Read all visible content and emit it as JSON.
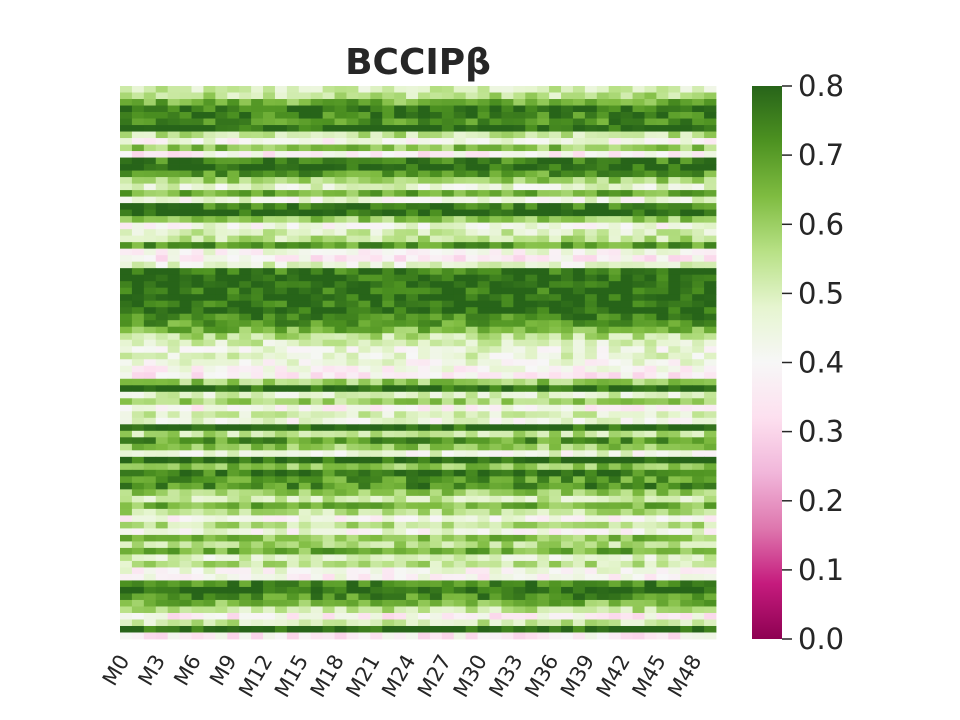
{
  "chart_data": {
    "type": "heatmap",
    "title": "BCCIPβ",
    "xlabel": "",
    "ylabel": "",
    "x_tick_labels": [
      "M0",
      "M3",
      "M6",
      "M9",
      "M12",
      "M15",
      "M18",
      "M21",
      "M24",
      "M27",
      "M30",
      "M33",
      "M36",
      "M39",
      "M42",
      "M45",
      "M48"
    ],
    "x_tick_step": 3,
    "n_columns": 50,
    "y_tick_labels": [],
    "colormap": "PiYG",
    "colormap_stops": [
      "#8e0152",
      "#c51b7d",
      "#de77ae",
      "#f1b6da",
      "#fde0ef",
      "#f7f7f7",
      "#e6f5d0",
      "#b8e186",
      "#7fbc41",
      "#4d9221",
      "#276419"
    ],
    "vmin": 0.0,
    "vmax": 0.8,
    "colorbar_ticks": [
      "0.0",
      "0.1",
      "0.2",
      "0.3",
      "0.4",
      "0.5",
      "0.6",
      "0.7",
      "0.8"
    ],
    "row_means": [
      0.5,
      0.55,
      0.66,
      0.77,
      0.74,
      0.72,
      0.8,
      0.55,
      0.42,
      0.62,
      0.38,
      0.75,
      0.79,
      0.7,
      0.6,
      0.48,
      0.66,
      0.45,
      0.75,
      0.8,
      0.61,
      0.43,
      0.5,
      0.55,
      0.7,
      0.42,
      0.36,
      0.47,
      0.76,
      0.79,
      0.8,
      0.78,
      0.8,
      0.78,
      0.8,
      0.74,
      0.7,
      0.65,
      0.55,
      0.5,
      0.45,
      0.47,
      0.43,
      0.4,
      0.36,
      0.6,
      0.8,
      0.48,
      0.58,
      0.4,
      0.5,
      0.44,
      0.8,
      0.55,
      0.7,
      0.6,
      0.45,
      0.8,
      0.62,
      0.76,
      0.7,
      0.72,
      0.6,
      0.52,
      0.65,
      0.55,
      0.42,
      0.55,
      0.43,
      0.62,
      0.56,
      0.66,
      0.48,
      0.55,
      0.42,
      0.4,
      0.74,
      0.8,
      0.72,
      0.65,
      0.54,
      0.38,
      0.52,
      0.8,
      0.36
    ]
  }
}
